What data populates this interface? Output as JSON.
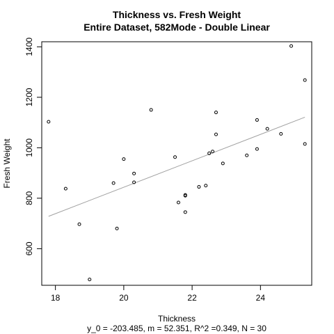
{
  "chart_data": {
    "type": "scatter",
    "title": "Thickness vs. Fresh Weight",
    "subtitle": "Entire Dataset, 582Mode - Double Linear",
    "xlabel": "Thickness",
    "ylabel": "Fresh Weight",
    "caption": "y_0 = -203.485, m = 52.351, R^2 =0.349, N = 30",
    "xlim": [
      17.6,
      25.5
    ],
    "ylim": [
      455,
      1420
    ],
    "xticks": [
      18,
      20,
      22,
      24
    ],
    "yticks": [
      600,
      800,
      1000,
      1200,
      1400
    ],
    "points": [
      {
        "x": 17.8,
        "y": 1103
      },
      {
        "x": 18.3,
        "y": 838
      },
      {
        "x": 18.7,
        "y": 697
      },
      {
        "x": 19.0,
        "y": 478
      },
      {
        "x": 19.7,
        "y": 860
      },
      {
        "x": 19.8,
        "y": 680
      },
      {
        "x": 20.0,
        "y": 955
      },
      {
        "x": 20.3,
        "y": 898
      },
      {
        "x": 20.3,
        "y": 863
      },
      {
        "x": 20.8,
        "y": 1150
      },
      {
        "x": 21.5,
        "y": 963
      },
      {
        "x": 21.6,
        "y": 783
      },
      {
        "x": 21.8,
        "y": 810
      },
      {
        "x": 21.8,
        "y": 813
      },
      {
        "x": 21.8,
        "y": 745
      },
      {
        "x": 22.2,
        "y": 845
      },
      {
        "x": 22.4,
        "y": 850
      },
      {
        "x": 22.5,
        "y": 978
      },
      {
        "x": 22.6,
        "y": 985
      },
      {
        "x": 22.7,
        "y": 1140
      },
      {
        "x": 22.7,
        "y": 1053
      },
      {
        "x": 22.9,
        "y": 938
      },
      {
        "x": 23.6,
        "y": 970
      },
      {
        "x": 23.9,
        "y": 1110
      },
      {
        "x": 23.9,
        "y": 995
      },
      {
        "x": 24.2,
        "y": 1075
      },
      {
        "x": 24.6,
        "y": 1055
      },
      {
        "x": 24.9,
        "y": 1403
      },
      {
        "x": 25.3,
        "y": 1268
      },
      {
        "x": 25.3,
        "y": 1015
      }
    ],
    "fit": {
      "intercept": -203.485,
      "slope": 52.351,
      "x_range": [
        17.8,
        25.3
      ],
      "color": "#a0a0a0"
    },
    "point_color": "#000000",
    "grid": false,
    "legend": "none"
  }
}
